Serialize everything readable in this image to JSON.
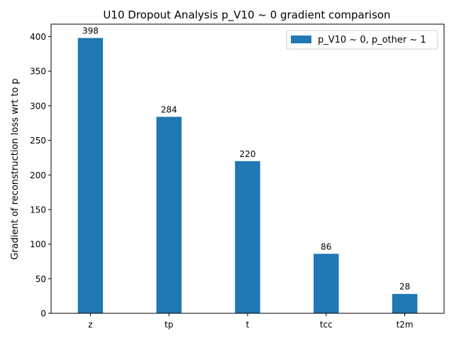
{
  "chart_data": {
    "type": "bar",
    "title": "U10 Dropout Analysis p_V10 ~ 0 gradient comparison",
    "xlabel": "",
    "ylabel": "Gradient of reconstruction loss wrt to p",
    "categories": [
      "z",
      "tp",
      "t",
      "tcc",
      "t2m"
    ],
    "series": [
      {
        "name": "p_V10 ~ 0, p_other ~ 1",
        "values": [
          398,
          284,
          220,
          86,
          28
        ],
        "color": "#1f77b4"
      }
    ],
    "data_labels": [
      "398",
      "284",
      "220",
      "86",
      "28"
    ],
    "ylim": [
      0,
      418
    ],
    "yticks": [
      0,
      50,
      100,
      150,
      200,
      250,
      300,
      350,
      400
    ],
    "grid": false,
    "legend_position": "top-right"
  }
}
